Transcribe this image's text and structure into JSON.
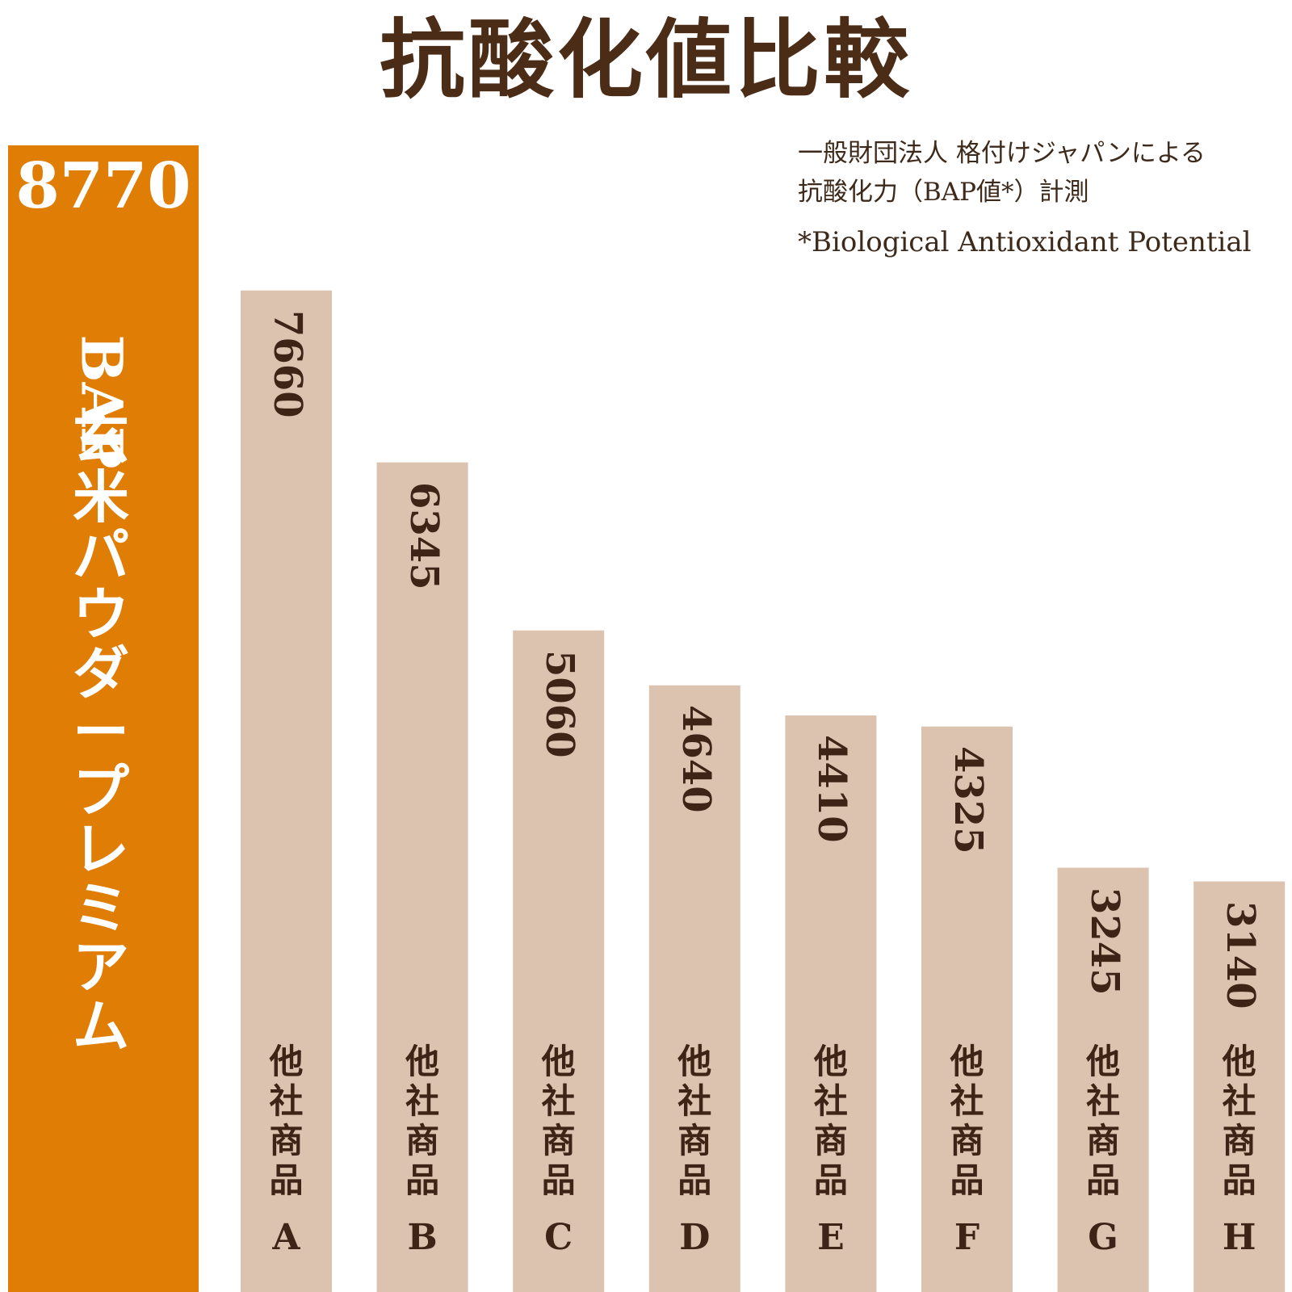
{
  "title": "抗酸化値比較",
  "note": {
    "line1": "一般財団法人 格付けジャパンによる",
    "line2": "抗酸化力（BAP値*）計測",
    "footnote": "*Biological Antioxidant Potential"
  },
  "colors": {
    "highlight": "#e07d05",
    "bar": "#dbc3af",
    "text_dark": "#3d2416",
    "title": "#4a2c17"
  },
  "chart_data": {
    "type": "bar",
    "orientation": "vertical",
    "categories": [
      "BAP 玄米パウダープレミアム",
      "他社商品A",
      "他社商品B",
      "他社商品C",
      "他社商品D",
      "他社商品E",
      "他社商品F",
      "他社商品G",
      "他社商品H"
    ],
    "values": [
      8770,
      7660,
      6345,
      5060,
      4640,
      4410,
      4325,
      3245,
      3140
    ],
    "value_labels": [
      "8770",
      "7660",
      "6345",
      "5060",
      "4640",
      "4410",
      "4325",
      "3245",
      "3140"
    ],
    "highlight_label": {
      "prefix": "BAP",
      "name": "玄米パウダープレミアム"
    },
    "product_label": "他社商品",
    "product_letters": [
      "A",
      "B",
      "C",
      "D",
      "E",
      "F",
      "G",
      "H"
    ],
    "title": "抗酸化値比較",
    "xlabel": "",
    "ylabel": "",
    "grid": false,
    "legend": "none"
  }
}
